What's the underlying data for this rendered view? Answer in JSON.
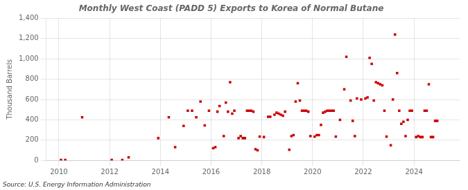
{
  "chart_data": {
    "type": "scatter",
    "title": "Monthly West Coast (PADD 5) Exports to Korea of Normal Butane",
    "y_label": "Thousand Barrels",
    "annotation": "Source: U.S. Energy Information Administration",
    "color": "#cc0000",
    "marker": "square",
    "grid": true,
    "xlim": [
      2009.5,
      2025.8
    ],
    "xticks": [
      2010,
      2012,
      2014,
      2016,
      2018,
      2020,
      2022,
      2024
    ],
    "ylim": [
      0,
      1400
    ],
    "yticks": [
      0,
      200,
      400,
      600,
      800,
      {
        "value": 1000,
        "label": "1,000"
      },
      {
        "value": 1200,
        "label": "1,200"
      },
      {
        "value": 1400,
        "label": "1,400"
      }
    ],
    "x": [
      2010.083,
      2010.25,
      2010.917,
      2012.083,
      2012.5,
      2012.75,
      2013.917,
      2014.333,
      2014.583,
      2014.917,
      2015.083,
      2015.25,
      2015.417,
      2015.583,
      2015.75,
      2015.917,
      2016.083,
      2016.167,
      2016.25,
      2016.333,
      2016.5,
      2016.583,
      2016.667,
      2016.75,
      2016.833,
      2016.917,
      2017.083,
      2017.167,
      2017.25,
      2017.333,
      2017.417,
      2017.5,
      2017.583,
      2017.667,
      2017.75,
      2017.833,
      2017.917,
      2018.083,
      2018.25,
      2018.333,
      2018.5,
      2018.583,
      2018.667,
      2018.75,
      2018.833,
      2018.917,
      2019.083,
      2019.167,
      2019.25,
      2019.333,
      2019.417,
      2019.5,
      2019.583,
      2019.667,
      2019.75,
      2019.833,
      2019.917,
      2020.083,
      2020.167,
      2020.25,
      2020.333,
      2020.417,
      2020.5,
      2020.583,
      2020.667,
      2020.75,
      2020.833,
      2020.917,
      2021.083,
      2021.25,
      2021.333,
      2021.5,
      2021.583,
      2021.667,
      2021.75,
      2021.917,
      2022.083,
      2022.167,
      2022.25,
      2022.333,
      2022.417,
      2022.5,
      2022.583,
      2022.667,
      2022.75,
      2022.833,
      2022.917,
      2023.083,
      2023.167,
      2023.25,
      2023.333,
      2023.417,
      2023.5,
      2023.583,
      2023.667,
      2023.75,
      2023.833,
      2023.917,
      2024.083,
      2024.167,
      2024.25,
      2024.333,
      2024.417,
      2024.5,
      2024.583,
      2024.667,
      2024.75,
      2024.833,
      2024.917
    ],
    "values": [
      5,
      5,
      425,
      5,
      5,
      30,
      220,
      425,
      130,
      340,
      490,
      490,
      425,
      580,
      345,
      490,
      120,
      130,
      480,
      535,
      240,
      570,
      480,
      770,
      460,
      490,
      220,
      240,
      220,
      220,
      490,
      490,
      490,
      480,
      110,
      100,
      235,
      230,
      430,
      430,
      450,
      470,
      460,
      450,
      440,
      480,
      105,
      240,
      250,
      580,
      760,
      590,
      490,
      490,
      490,
      480,
      240,
      235,
      250,
      250,
      350,
      470,
      480,
      490,
      490,
      490,
      490,
      235,
      400,
      700,
      1020,
      590,
      390,
      240,
      610,
      600,
      610,
      620,
      1010,
      950,
      590,
      770,
      760,
      750,
      740,
      490,
      235,
      150,
      600,
      1240,
      860,
      490,
      360,
      380,
      240,
      400,
      490,
      490,
      230,
      240,
      230,
      230,
      490,
      490,
      750,
      230,
      230,
      390,
      390
    ]
  }
}
